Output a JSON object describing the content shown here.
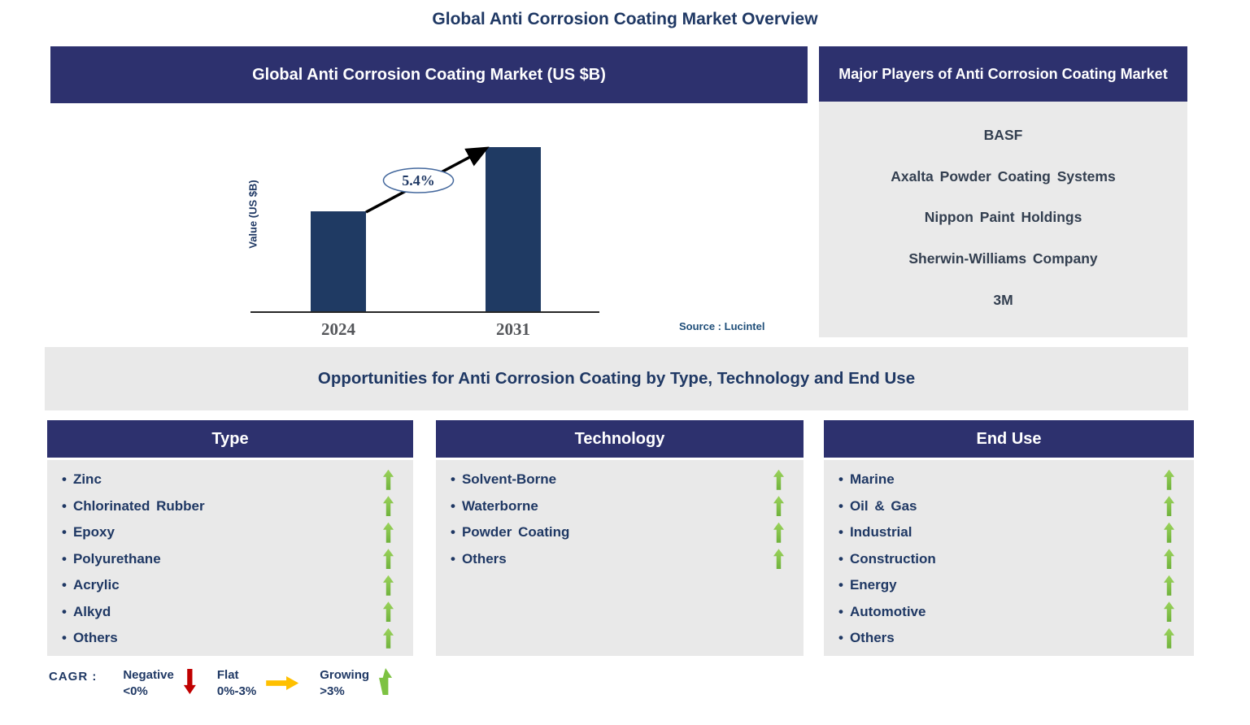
{
  "page": {
    "title": "Global Anti Corrosion Coating Market Overview"
  },
  "market_chart": {
    "header": "Global Anti Corrosion Coating Market (US $B)",
    "ylabel": "Value (US $B)",
    "cagr_annotation": "5.4%",
    "source": "Source : Lucintel"
  },
  "chart_data": {
    "type": "bar",
    "title": "Global Anti Corrosion Coating Market (US $B)",
    "categories": [
      "2024",
      "2031"
    ],
    "values": [
      61,
      100
    ],
    "value_note": "y axis has no numeric ticks; values are relative bar heights in % of the 2031 bar",
    "xlabel": "",
    "ylabel": "Value (US $B)",
    "annotation": "5.4%",
    "bar_color": "#1F3A63",
    "grid": false,
    "legend_position": "none"
  },
  "major_players": {
    "header": "Major Players of Anti Corrosion Coating Market",
    "players": [
      "BASF",
      "Axalta Powder Coating Systems",
      "Nippon Paint Holdings",
      "Sherwin-Williams Company",
      "3M"
    ]
  },
  "opportunities": {
    "banner": "Opportunities for Anti Corrosion Coating by Type, Technology and End Use",
    "columns": [
      {
        "header": "Type",
        "items": [
          {
            "label": "Zinc",
            "trend": "growing"
          },
          {
            "label": "Chlorinated Rubber",
            "trend": "growing"
          },
          {
            "label": "Epoxy",
            "trend": "growing"
          },
          {
            "label": "Polyurethane",
            "trend": "growing"
          },
          {
            "label": "Acrylic",
            "trend": "growing"
          },
          {
            "label": "Alkyd",
            "trend": "growing"
          },
          {
            "label": "Others",
            "trend": "growing"
          }
        ]
      },
      {
        "header": "Technology",
        "items": [
          {
            "label": "Solvent-Borne",
            "trend": "growing"
          },
          {
            "label": "Waterborne",
            "trend": "growing"
          },
          {
            "label": "Powder Coating",
            "trend": "growing"
          },
          {
            "label": "Others",
            "trend": "growing"
          }
        ]
      },
      {
        "header": "End Use",
        "items": [
          {
            "label": "Marine",
            "trend": "growing"
          },
          {
            "label": "Oil & Gas",
            "trend": "growing"
          },
          {
            "label": "Industrial",
            "trend": "growing"
          },
          {
            "label": "Construction",
            "trend": "growing"
          },
          {
            "label": "Energy",
            "trend": "growing"
          },
          {
            "label": "Automotive",
            "trend": "growing"
          },
          {
            "label": "Others",
            "trend": "growing"
          }
        ]
      }
    ]
  },
  "cagr_legend": {
    "prefix": "CAGR :",
    "entries": [
      {
        "label": "Negative",
        "range": "<0%",
        "direction": "down",
        "color": "#C00000"
      },
      {
        "label": "Flat",
        "range": "0%-3%",
        "direction": "right",
        "color": "#FFC000"
      },
      {
        "label": "Growing",
        "range": ">3%",
        "direction": "up",
        "color": "#7DC242"
      }
    ]
  },
  "colors": {
    "header_navy": "#2D316E",
    "bar_navy": "#1F3A63",
    "panel_gray": "#E9E9E9",
    "text_navy": "#1F3864",
    "source_blue": "#1F4E79",
    "growing_green": "#7DC242",
    "negative_red": "#C00000",
    "flat_orange": "#FFC000"
  }
}
